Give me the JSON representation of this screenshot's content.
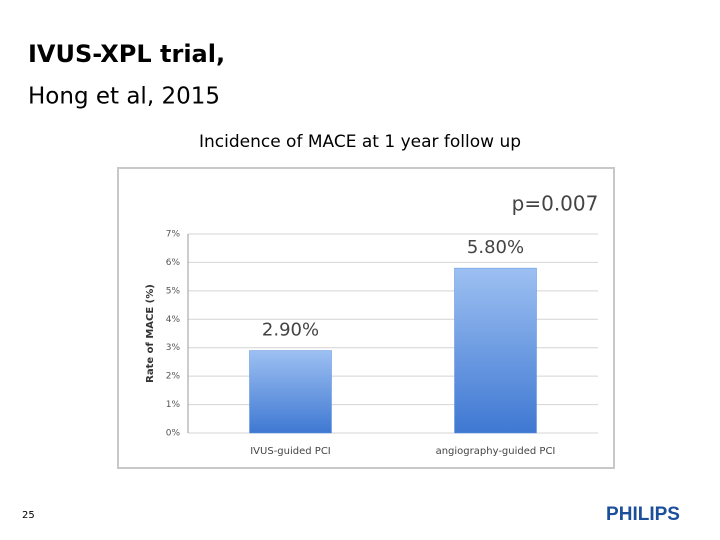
{
  "slide": {
    "title_line1": "IVUS-XPL trial,",
    "title_line2": "Hong et al, 2015",
    "page_number": "25",
    "logo": "PHILIPS"
  },
  "chart_data": {
    "type": "bar",
    "title": "Incidence of MACE at 1 year follow up",
    "y_label": "Rate of MACE (%)",
    "annotation": "p=0.007",
    "categories": [
      "IVUS-guided PCI",
      "angiography-guided PCI"
    ],
    "values": [
      2.9,
      5.8
    ],
    "value_labels": [
      "2.90%",
      "5.80%"
    ],
    "color": "#5b8fe0",
    "ylim": [
      0,
      7
    ],
    "yticks": [
      {
        "value": 0,
        "label": "0%"
      },
      {
        "value": 1,
        "label": "1%"
      },
      {
        "value": 2,
        "label": "2%"
      },
      {
        "value": 3,
        "label": "3%"
      },
      {
        "value": 4,
        "label": "4%"
      },
      {
        "value": 5,
        "label": "5%"
      },
      {
        "value": 6,
        "label": "6%"
      },
      {
        "value": 7,
        "label": "7%"
      }
    ],
    "grid": true
  }
}
